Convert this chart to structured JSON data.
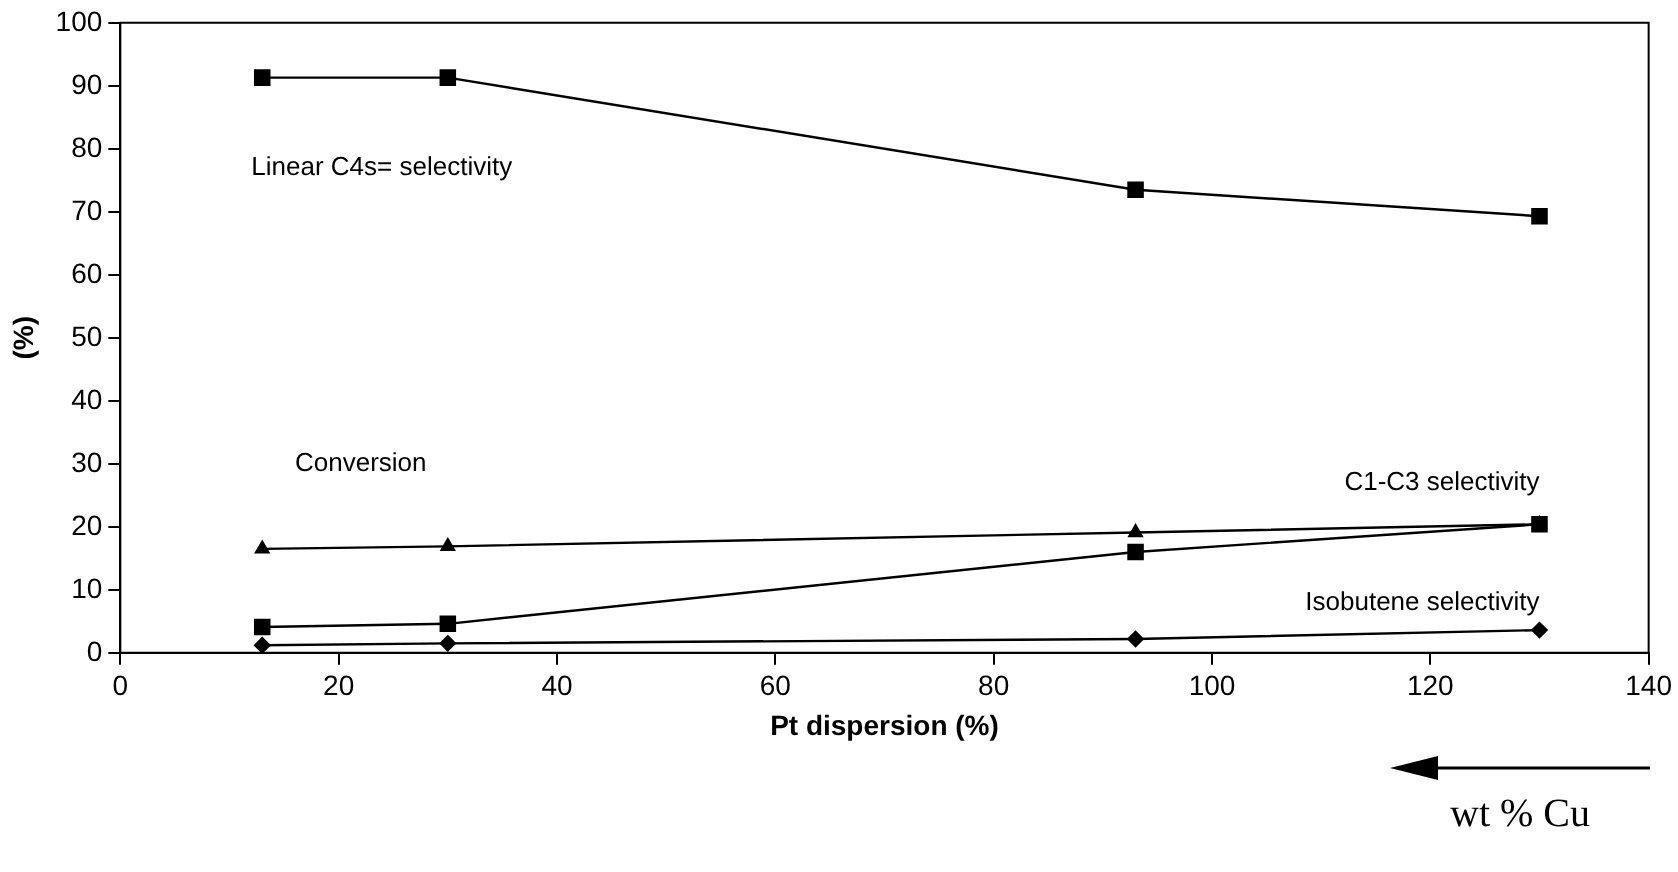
{
  "chart_data": {
    "type": "line",
    "xlabel": "Pt dispersion (%)",
    "ylabel": "(%)",
    "xlim": [
      0,
      140
    ],
    "xticks": [
      0,
      20,
      40,
      60,
      80,
      100,
      120,
      140
    ],
    "ylim": [
      0,
      100
    ],
    "yticks": [
      0,
      10,
      20,
      30,
      40,
      50,
      60,
      70,
      80,
      90,
      100
    ],
    "grid": false,
    "legend": false,
    "line_style": "solid",
    "x": [
      13,
      30,
      93,
      130
    ],
    "series": [
      {
        "name": "Linear C4s= selectivity",
        "color": "#000000",
        "marker": "square",
        "values": [
          91.3,
          91.3,
          73.5,
          69.3
        ]
      },
      {
        "name": "Conversion",
        "color": "#000000",
        "marker": "triangle",
        "values": [
          16.5,
          16.9,
          19.1,
          20.4
        ]
      },
      {
        "name": "C1-C3 selectivity",
        "color": "#000000",
        "marker": "square",
        "values": [
          4.1,
          4.6,
          16.0,
          20.4
        ]
      },
      {
        "name": "Isobutene selectivity",
        "color": "#000000",
        "marker": "diamond",
        "values": [
          1.2,
          1.5,
          2.2,
          3.6
        ]
      }
    ],
    "annotations": [
      "wt % Cu"
    ]
  }
}
